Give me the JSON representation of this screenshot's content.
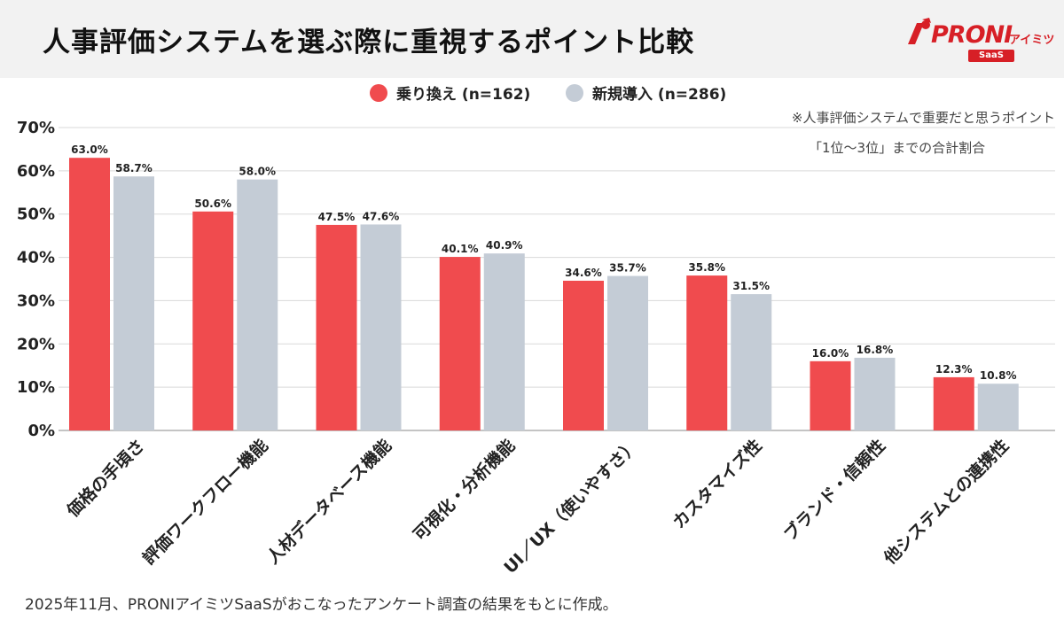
{
  "title": "人事評価システムを選ぶ際に重視するポイント比較",
  "logo": {
    "main": "PRONI",
    "kana": "アイミツ",
    "sub": "SaaS"
  },
  "colors": {
    "series1": "#f04b4e",
    "series2": "#c4ccd6",
    "logo": "#d71f26"
  },
  "note": {
    "line1": "※人事評価システムで重要だと思うポイント",
    "line2": "「1位〜3位」までの合計割合"
  },
  "footer": "2025年11月、PRONIアイミツSaaSがおこなったアンケート調査の結果をもとに作成。",
  "chart_data": {
    "type": "bar",
    "categories": [
      "価格の手頃さ",
      "評価ワークフロー機能",
      "人材データベース機能",
      "可視化・分析機能",
      "UI／UX（使いやすさ）",
      "カスタマイズ性",
      "ブランド・信頼性",
      "他システムとの連携性"
    ],
    "series": [
      {
        "name": "乗り換え (n=162)",
        "values": [
          63.0,
          50.6,
          47.5,
          40.1,
          34.6,
          35.8,
          16.0,
          12.3
        ],
        "labels": [
          "63.0%",
          "50.6%",
          "47.5%",
          "40.1%",
          "34.6%",
          "35.8%",
          "16.0%",
          "12.3%"
        ]
      },
      {
        "name": "新規導入 (n=286)",
        "values": [
          58.7,
          58.0,
          47.6,
          40.9,
          35.7,
          31.5,
          16.8,
          10.8
        ],
        "labels": [
          "58.7%",
          "58.0%",
          "47.6%",
          "40.9%",
          "35.7%",
          "31.5%",
          "16.8%",
          "10.8%"
        ]
      }
    ],
    "ylim": [
      0,
      70
    ],
    "yticks": [
      0,
      10,
      20,
      30,
      40,
      50,
      60,
      70
    ],
    "ytick_labels": [
      "0%",
      "10%",
      "20%",
      "30%",
      "40%",
      "50%",
      "60%",
      "70%"
    ],
    "grid": true,
    "legend_position": "top-center"
  }
}
